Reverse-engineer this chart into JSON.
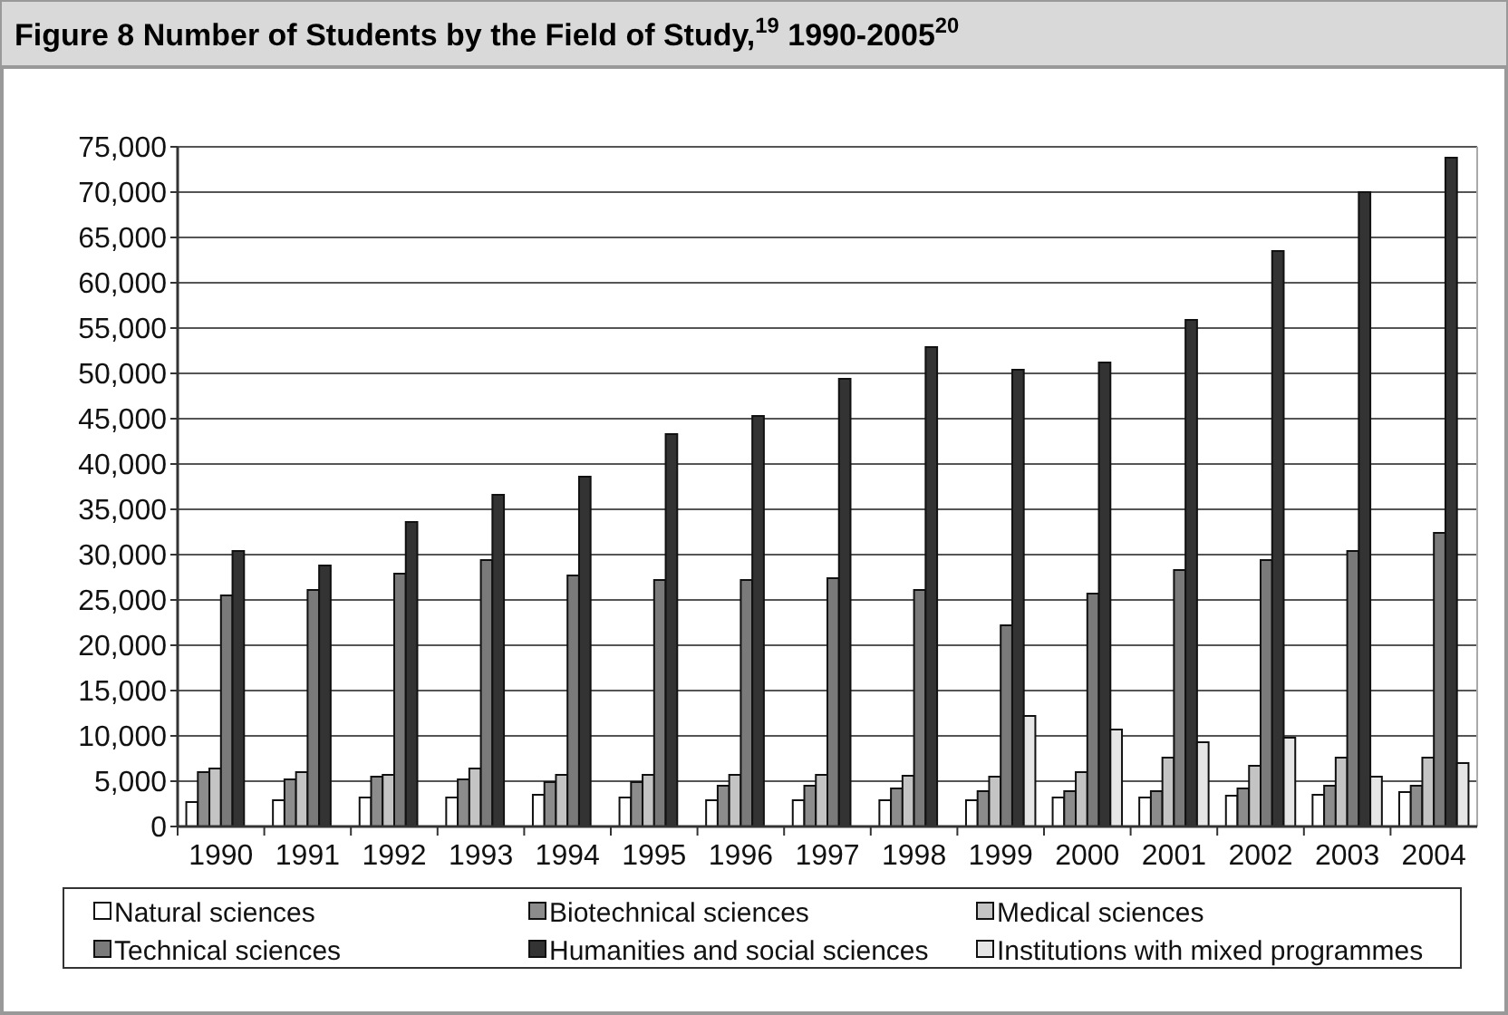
{
  "chart_data": {
    "type": "bar",
    "title": "Figure 8 Number of Students by the Field of Study,$^{19}$ 1990-2005$^{20}$",
    "categories": [
      "1990",
      "1991",
      "1992",
      "1993",
      "1994",
      "1995",
      "1996",
      "1997",
      "1998",
      "1999",
      "2000",
      "2001",
      "2002",
      "2003",
      "2004"
    ],
    "series": [
      {
        "name": "Natural sciences",
        "color": "#ffffff",
        "values": [
          2700,
          2900,
          3200,
          3200,
          3500,
          3200,
          2900,
          2900,
          2900,
          2900,
          3200,
          3200,
          3400,
          3500,
          3800
        ]
      },
      {
        "name": "Biotechnical sciences",
        "color": "#8c8c8c",
        "values": [
          6000,
          5200,
          5500,
          5200,
          4900,
          4900,
          4500,
          4500,
          4200,
          3900,
          3900,
          3900,
          4200,
          4500,
          4500
        ]
      },
      {
        "name": "Medical sciences",
        "color": "#c4c4c4",
        "values": [
          6400,
          6000,
          5700,
          6400,
          5700,
          5700,
          5700,
          5700,
          5600,
          5500,
          6000,
          7600,
          6700,
          7600,
          7600
        ]
      },
      {
        "name": "Technical sciences",
        "color": "#7a7a7a",
        "values": [
          25500,
          26100,
          27900,
          29400,
          27700,
          27200,
          27200,
          27400,
          26100,
          22200,
          25700,
          28300,
          29400,
          30400,
          32400
        ]
      },
      {
        "name": "Humanities and social sciences",
        "color": "#333333",
        "values": [
          30400,
          28800,
          33600,
          36600,
          38600,
          43300,
          45300,
          49400,
          52900,
          50400,
          51200,
          55900,
          63500,
          70000,
          73800
        ]
      },
      {
        "name": "Institutions with mixed programmes",
        "color": "#e6e6e6",
        "values": [
          null,
          null,
          null,
          null,
          null,
          null,
          null,
          null,
          null,
          12200,
          10700,
          9300,
          9800,
          5500,
          7000
        ]
      }
    ],
    "ylim": [
      0,
      75000
    ],
    "yticks": [
      {
        "value": 0,
        "label": "0"
      },
      {
        "value": 5000,
        "label": "5,000"
      },
      {
        "value": 10000,
        "label": "10,000"
      },
      {
        "value": 15000,
        "label": "15,000"
      },
      {
        "value": 20000,
        "label": "20,000"
      },
      {
        "value": 25000,
        "label": "25,000"
      },
      {
        "value": 30000,
        "label": "30,000"
      },
      {
        "value": 35000,
        "label": "35,000"
      },
      {
        "value": 40000,
        "label": "40,000"
      },
      {
        "value": 45000,
        "label": "45,000"
      },
      {
        "value": 50000,
        "label": "50,000"
      },
      {
        "value": 55000,
        "label": "55,000"
      },
      {
        "value": 60000,
        "label": "60,000"
      },
      {
        "value": 65000,
        "label": "65,000"
      },
      {
        "value": 70000,
        "label": "70,000"
      },
      {
        "value": 75000,
        "label": "75,000"
      }
    ],
    "grid": "y",
    "legend": "bottom"
  }
}
